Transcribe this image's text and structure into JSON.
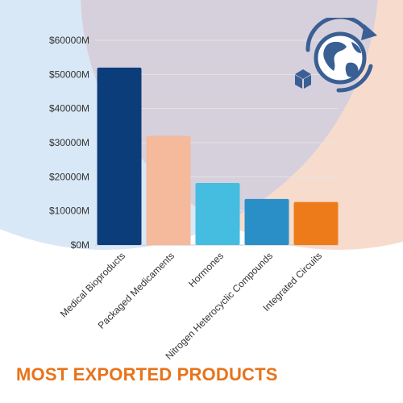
{
  "chart_data": {
    "type": "bar",
    "title": "MOST EXPORTED PRODUCTS",
    "categories": [
      "Medical Bioproducts",
      "Packaged Medicaments",
      "Hormones",
      "Nitrogen Heterocyclic Compounds",
      "Integrated Circuits"
    ],
    "values": [
      52000,
      32000,
      18200,
      13500,
      12600
    ],
    "unit": "M",
    "ylim": [
      0,
      60000
    ],
    "yticks": [
      "$0M",
      "$10000M",
      "$20000M",
      "$30000M",
      "$40000M",
      "$50000M",
      "$60000M"
    ],
    "bar_colors": [
      "#0b3d7a",
      "#f5b99b",
      "#45bde0",
      "#2a8fc6",
      "#ee7b1a"
    ],
    "grid": true,
    "legend": "none"
  },
  "decoration": {
    "icon": "globe-with-box-icon",
    "bg_colors": [
      "#d9e8f6",
      "#f7dccd",
      "#d6d0dc"
    ],
    "icon_color": "#3a5f94"
  }
}
